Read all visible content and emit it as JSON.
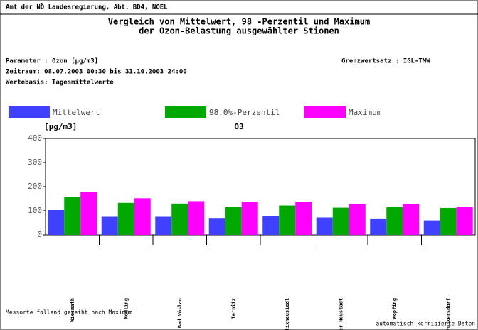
{
  "chart_data": {
    "type": "bar",
    "header": "Amt der NÖ Landesregierung, Abt. BD4, NOEL",
    "title": "Vergleich von Mittelwert, 98 -Perzentil und Maximum",
    "subtitle": "der Ozon-Belastung ausgewählter Stionen",
    "parameter": "Parameter : Ozon [µg/m3]",
    "zeitraum": "Zeitraum: 08.07.2003 00:30 bis 31.10.2003 24:00",
    "wertebasis": "Wertebasis: Tagesmittelwerte",
    "grenzwertsatz": "Grenzwertsatz : IGL-TMW",
    "y_label": "[µg/m3]",
    "chart_title": "O3",
    "categories": [
      "Wiesmath",
      "Mödling",
      "Bad Vöslau",
      "Ternitz",
      "Stixneusiedl",
      "Wiener Neustadt",
      "Wopfing",
      "Purkersdorf"
    ],
    "series": [
      {
        "name": "Mittelwert",
        "color": "#4040ff",
        "values": [
          103,
          75,
          75,
          70,
          78,
          72,
          68,
          60
        ]
      },
      {
        "name": "98.0%-Perzentil",
        "color": "#00a800",
        "values": [
          156,
          133,
          130,
          115,
          122,
          113,
          115,
          112
        ]
      },
      {
        "name": "Maximum",
        "color": "#ff00ff",
        "values": [
          179,
          152,
          140,
          138,
          137,
          127,
          127,
          116
        ]
      }
    ],
    "ylim": [
      0,
      400
    ],
    "yticks": [
      0,
      100,
      200,
      300,
      400
    ],
    "note": "Messorte fallend gereiht nach Maximum",
    "footer": "automatisch korrigierte Daten"
  }
}
